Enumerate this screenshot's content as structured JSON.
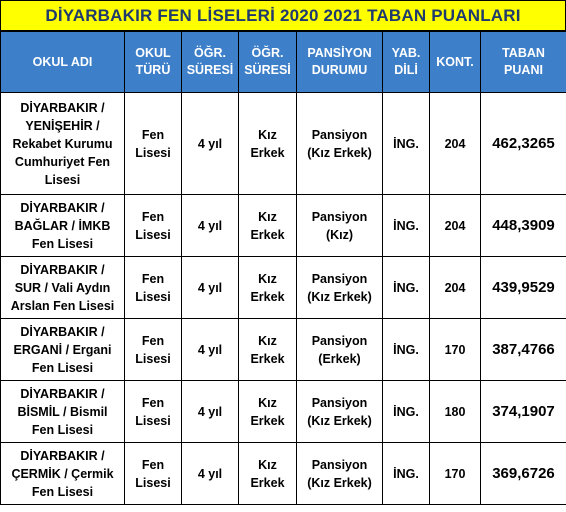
{
  "title": "DİYARBAKIR FEN LİSELERİ 2020 2021 TABAN PUANLARI",
  "headers": {
    "school": "OKUL ADI",
    "type": [
      "OKUL",
      "TÜRÜ"
    ],
    "duration": [
      "ÖĞR.",
      "SÜRESİ"
    ],
    "shift": [
      "ÖĞR.",
      "SÜRESİ"
    ],
    "boarding": [
      "PANSİYON",
      "DURUMU"
    ],
    "language": [
      "YAB.",
      "DİLİ"
    ],
    "quota": "KONT.",
    "score": [
      "TABAN",
      "PUANI"
    ]
  },
  "rows": [
    {
      "school": [
        "DİYARBAKIR /",
        "YENİŞEHİR /",
        "Rekabet Kurumu",
        "Cumhuriyet Fen",
        "Lisesi"
      ],
      "type": [
        "Fen",
        "Lisesi"
      ],
      "duration": "4 yıl",
      "shift": [
        "Kız",
        "Erkek"
      ],
      "boarding": [
        "Pansiyon",
        "(Kız Erkek)"
      ],
      "language": "İNG.",
      "quota": "204",
      "score": "462,3265"
    },
    {
      "school": [
        "DİYARBAKIR /",
        "BAĞLAR / İMKB",
        "Fen Lisesi"
      ],
      "type": [
        "Fen",
        "Lisesi"
      ],
      "duration": "4 yıl",
      "shift": [
        "Kız",
        "Erkek"
      ],
      "boarding": [
        "Pansiyon",
        "(Kız)"
      ],
      "language": "İNG.",
      "quota": "204",
      "score": "448,3909"
    },
    {
      "school": [
        "DİYARBAKIR /",
        "SUR / Vali Aydın",
        "Arslan Fen Lisesi"
      ],
      "type": [
        "Fen",
        "Lisesi"
      ],
      "duration": "4 yıl",
      "shift": [
        "Kız",
        "Erkek"
      ],
      "boarding": [
        "Pansiyon",
        "(Kız Erkek)"
      ],
      "language": "İNG.",
      "quota": "204",
      "score": "439,9529"
    },
    {
      "school": [
        "DİYARBAKIR /",
        "ERGANİ / Ergani",
        "Fen Lisesi"
      ],
      "type": [
        "Fen",
        "Lisesi"
      ],
      "duration": "4 yıl",
      "shift": [
        "Kız",
        "Erkek"
      ],
      "boarding": [
        "Pansiyon",
        "(Erkek)"
      ],
      "language": "İNG.",
      "quota": "170",
      "score": "387,4766"
    },
    {
      "school": [
        "DİYARBAKIR /",
        "BİSMİL / Bismil",
        "Fen Lisesi"
      ],
      "type": [
        "Fen",
        "Lisesi"
      ],
      "duration": "4 yıl",
      "shift": [
        "Kız",
        "Erkek"
      ],
      "boarding": [
        "Pansiyon",
        "(Kız Erkek)"
      ],
      "language": "İNG.",
      "quota": "180",
      "score": "374,1907"
    },
    {
      "school": [
        "DİYARBAKIR /",
        "ÇERMİK / Çermik",
        "Fen Lisesi"
      ],
      "type": [
        "Fen",
        "Lisesi"
      ],
      "duration": "4 yıl",
      "shift": [
        "Kız",
        "Erkek"
      ],
      "boarding": [
        "Pansiyon",
        "(Kız Erkek)"
      ],
      "language": "İNG.",
      "quota": "170",
      "score": "369,6726"
    }
  ],
  "colors": {
    "title_bg": "#ffff00",
    "title_text": "#1f3a6e",
    "header_bg": "#3d7fc8",
    "header_text": "#ffffff"
  }
}
